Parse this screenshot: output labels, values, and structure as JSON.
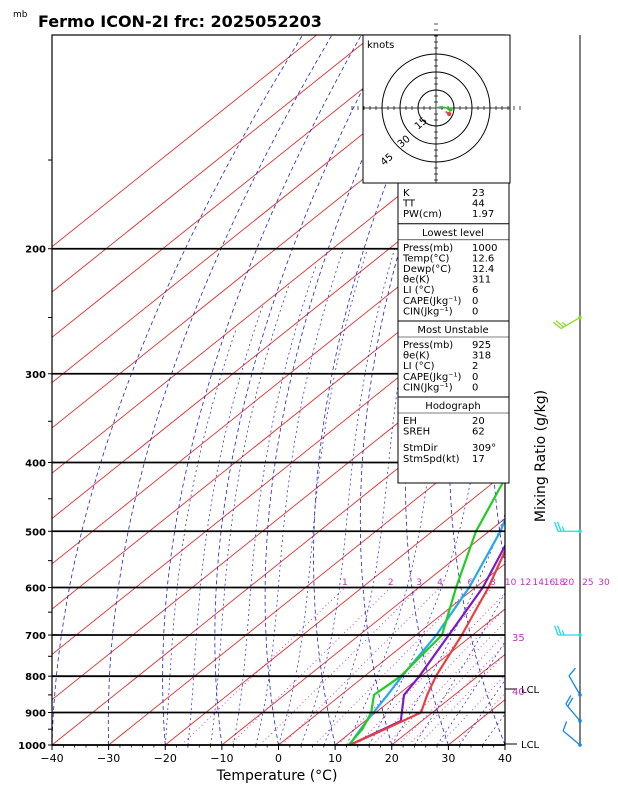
{
  "title": "Fermo ICON-2I frc: 2025052203",
  "pressure_unit": "mb",
  "xlabel": "Temperature (°C)",
  "right_label": "Mixing Ratio (g/kg)",
  "hodo_unit": "knots",
  "hodo_rings": [
    "15",
    "30",
    "45"
  ],
  "colors": {
    "isotherm": "#e03030",
    "dry_adiabat": "#2020d0",
    "moist_adiabat": "#2020d0",
    "mixing_ratio": "#c030c0",
    "temperature": "#e84040",
    "dewpoint": "#22cc22",
    "parcel": "#7a1ac8",
    "wet_bulb": "#22aaee",
    "barb_green": "#88dd22",
    "barb_cyan": "#22dddd",
    "barb_blue": "#1188ee"
  },
  "mixing_ratio_labels": [
    "1",
    "2",
    "3",
    "4",
    "6",
    "8",
    "10",
    "12",
    "14",
    "16",
    "18",
    "20",
    "25",
    "30"
  ],
  "lcl_labels": [
    "LCL",
    "LCL"
  ],
  "right_numbers": [
    "35",
    "40"
  ],
  "index_box": {
    "top": [
      [
        "K",
        "23"
      ],
      [
        "TT",
        "44"
      ],
      [
        "PW(cm)",
        "1.97"
      ]
    ],
    "lowest_header": "Lowest level",
    "lowest": [
      [
        "Press(mb)",
        "1000"
      ],
      [
        "Temp(°C)",
        "12.6"
      ],
      [
        "Dewp(°C)",
        "12.4"
      ],
      [
        "θe(K)",
        "311"
      ],
      [
        "LI (°C)",
        "6"
      ],
      [
        "CAPE(Jkg⁻¹)",
        "0"
      ],
      [
        "CIN(Jkg⁻¹)",
        "0"
      ]
    ],
    "unstable_header": "Most Unstable",
    "unstable": [
      [
        "Press(mb)",
        "925"
      ],
      [
        "θe(K)",
        "318"
      ],
      [
        "LI (°C)",
        "2"
      ],
      [
        "CAPE(Jkg⁻¹)",
        "0"
      ],
      [
        "CIN(Jkg⁻¹)",
        "0"
      ]
    ],
    "hodo_header": "Hodograph",
    "hodo": [
      [
        "EH",
        "20"
      ],
      [
        "SREH",
        "62"
      ]
    ],
    "storm": [
      [
        "StmDir",
        "309°"
      ],
      [
        "StmSpd(kt)",
        "17"
      ]
    ]
  },
  "chart_data": {
    "type": "line",
    "title": "Fermo ICON-2I frc: 2025052203",
    "xlabel": "Temperature (°C)",
    "ylabel": "mb",
    "xlim": [
      -40,
      40
    ],
    "ylim": [
      1000,
      100
    ],
    "x_ticks": [
      "−40",
      "−30",
      "−20",
      "−10",
      "0",
      "10",
      "20",
      "30",
      "40"
    ],
    "y_ticks": [
      "1000",
      "900",
      "800",
      "700",
      "600",
      "500",
      "400",
      "300",
      "200"
    ],
    "y_tick_values": [
      1000,
      900,
      800,
      700,
      600,
      500,
      400,
      300,
      200
    ],
    "series": [
      {
        "name": "temperature",
        "points": [
          [
            1000,
            12.6
          ],
          [
            950,
            15.3
          ],
          [
            900,
            18.0
          ],
          [
            850,
            15.2
          ],
          [
            800,
            12.6
          ],
          [
            700,
            8.1
          ],
          [
            600,
            2.3
          ],
          [
            500,
            -5.6
          ],
          [
            400,
            -14.0
          ],
          [
            300,
            -23.5
          ],
          [
            250,
            -30.5
          ]
        ]
      },
      {
        "name": "dewpoint",
        "points": [
          [
            1000,
            12.4
          ],
          [
            950,
            11.3
          ],
          [
            900,
            9.2
          ],
          [
            850,
            5.8
          ],
          [
            800,
            6.4
          ],
          [
            700,
            4.6
          ],
          [
            600,
            -3.4
          ],
          [
            500,
            -12.3
          ],
          [
            400,
            -20.8
          ],
          [
            300,
            -30.0
          ],
          [
            250,
            -38.8
          ]
        ]
      },
      {
        "name": "parcel",
        "points": [
          [
            1000,
            12.6
          ],
          [
            925,
            16.3
          ],
          [
            850,
            11.1
          ],
          [
            800,
            9.7
          ],
          [
            700,
            5.8
          ],
          [
            600,
            1.3
          ],
          [
            500,
            -5.8
          ],
          [
            400,
            -16.0
          ],
          [
            300,
            -30.3
          ],
          [
            200,
            -47.7
          ],
          [
            100,
            -74.5
          ]
        ]
      },
      {
        "name": "wet_bulb",
        "points": [
          [
            1000,
            12.5
          ],
          [
            950,
            11.0
          ],
          [
            900,
            9.6
          ],
          [
            850,
            8.2
          ],
          [
            800,
            6.6
          ],
          [
            700,
            3.6
          ],
          [
            600,
            -1.1
          ],
          [
            500,
            -8.0
          ],
          [
            400,
            -18.3
          ],
          [
            300,
            -33.7
          ],
          [
            200,
            -54.1
          ],
          [
            100,
            -82.5
          ]
        ]
      }
    ],
    "hodograph": {
      "rings": [
        15,
        30,
        45
      ],
      "points": [
        [
          0,
          0
        ],
        [
          3.5,
          0.8
        ],
        [
          7,
          0.5
        ],
        [
          12,
          -1.2
        ]
      ],
      "storm_motion": [
        11,
        -5
      ]
    },
    "wind_barbs": [
      {
        "p": 1000,
        "dir": 310,
        "spd": 10
      },
      {
        "p": 925,
        "dir": 320,
        "spd": 20
      },
      {
        "p": 850,
        "dir": 330,
        "spd": 10
      },
      {
        "p": 700,
        "dir": 270,
        "spd": 25
      },
      {
        "p": 500,
        "dir": 270,
        "spd": 25
      },
      {
        "p": 250,
        "dir": 240,
        "spd": 25
      }
    ]
  }
}
